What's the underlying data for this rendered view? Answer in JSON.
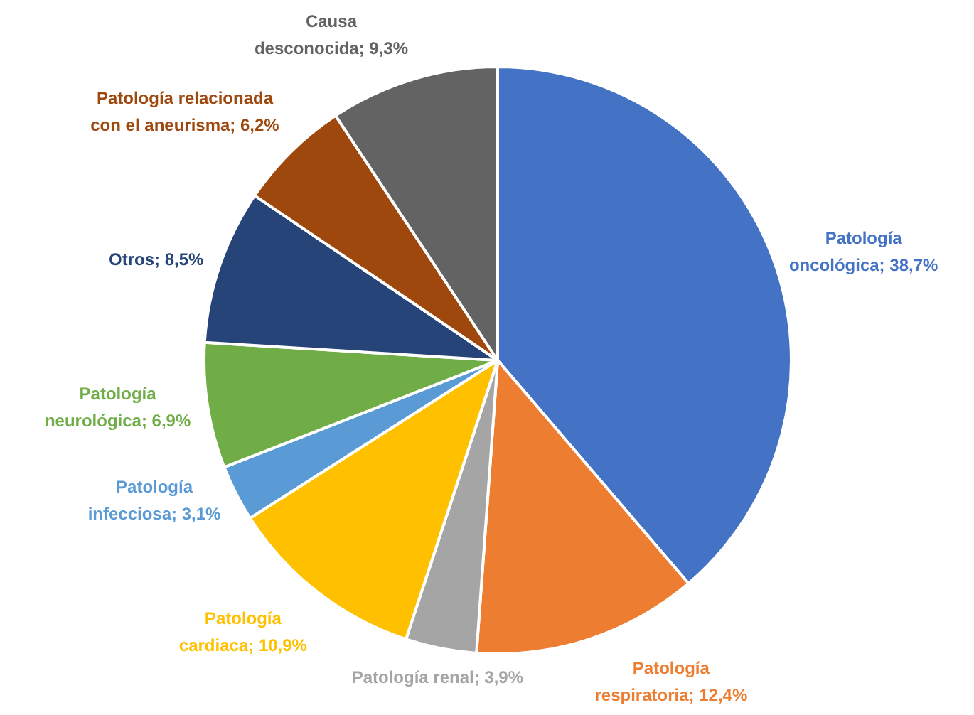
{
  "chart_data": {
    "type": "pie",
    "categories": [
      "Patología oncológica",
      "Patología respiratoria",
      "Patología renal",
      "Patología cardiaca",
      "Patología infecciosa",
      "Patología neurológica",
      "Otros",
      "Patología relacionada con el aneurisma",
      "Causa desconocida"
    ],
    "values": [
      38.7,
      12.4,
      3.9,
      10.9,
      3.1,
      6.9,
      8.5,
      6.2,
      9.3
    ],
    "value_labels": [
      "38,7%",
      "12,4%",
      "3,9%",
      "10,9%",
      "3,1%",
      "6,9%",
      "8,5%",
      "6,2%",
      "9,3%"
    ],
    "colors": [
      "#4472c4",
      "#ed7d31",
      "#a5a5a5",
      "#ffc000",
      "#5b9bd5",
      "#70ad47",
      "#264478",
      "#9e480e",
      "#636363"
    ],
    "legend": false
  }
}
